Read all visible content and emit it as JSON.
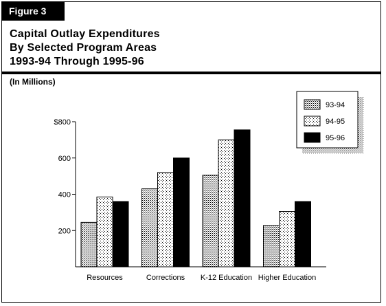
{
  "figure_label": "Figure 3",
  "title_lines": [
    "Capital Outlay Expenditures",
    "By Selected Program Areas",
    "1993-94 Through 1995-96"
  ],
  "units_label": "(In Millions)",
  "chart_data": {
    "type": "bar",
    "categories": [
      "Resources",
      "Corrections",
      "K-12 Education",
      "Higher Education"
    ],
    "series": [
      {
        "name": "93-94",
        "values": [
          245,
          430,
          505,
          228
        ],
        "pattern": "dense-dots"
      },
      {
        "name": "94-95",
        "values": [
          385,
          520,
          700,
          305
        ],
        "pattern": "light-dots"
      },
      {
        "name": "95-96",
        "values": [
          360,
          600,
          755,
          360
        ],
        "pattern": "solid"
      }
    ],
    "ylim": [
      0,
      800
    ],
    "yticks": [
      200,
      400,
      600,
      800
    ],
    "ytick_labels": [
      "200",
      "400",
      "600",
      "$800"
    ],
    "legend_position": "top-right",
    "grid": false,
    "colors": {
      "solid": "#000000",
      "pattern": "#000000",
      "background": "#ffffff"
    }
  }
}
